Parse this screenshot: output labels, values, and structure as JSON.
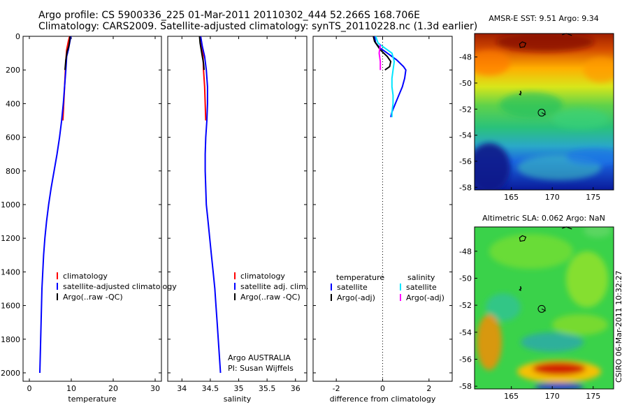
{
  "header": {
    "line1": "Argo profile: CS 5900336_225 01-Mar-2011 20110302_444 52.266S 168.706E",
    "line2": "Climatology: CARS2009. Satellite-adjusted climatology: synTS_20110228.nc (1.3d earlier)"
  },
  "footer_stamp": "CSIRO 06-Mar-2011 10:32:27",
  "credit": {
    "line1": "Argo AUSTRALIA",
    "line2": "PI: Susan Wijffels"
  },
  "colors": {
    "climatology": "#ff0000",
    "satellite": "#0000ff",
    "argo": "#000000",
    "salinity_satellite": "#00e5ff",
    "salinity_argo": "#ff00ff"
  },
  "chart_data": [
    {
      "id": "temperature",
      "type": "line",
      "xlabel": "temperature",
      "ylabel": "",
      "xlim": [
        -1.5,
        31.5
      ],
      "ylim": [
        2050,
        0
      ],
      "xticks": [
        0,
        10,
        20,
        30
      ],
      "xtick_labels": [
        "0",
        "10",
        "20",
        "30"
      ],
      "yticks": [
        0,
        200,
        400,
        600,
        800,
        1000,
        1200,
        1400,
        1600,
        1800,
        2000
      ],
      "ytick_labels": [
        "0",
        "200",
        "400",
        "600",
        "800",
        "1000",
        "1200",
        "1400",
        "1600",
        "1800",
        "2000"
      ],
      "legend": [
        "climatology",
        "satellite-adjusted climatology",
        "Argo(..raw -QC)"
      ],
      "legend_position": "lower-right",
      "series": [
        {
          "name": "climatology",
          "color": "#ff0000",
          "points": [
            [
              9.6,
              0
            ],
            [
              9.3,
              30
            ],
            [
              8.9,
              80
            ],
            [
              8.7,
              150
            ],
            [
              8.5,
              250
            ],
            [
              8.3,
              350
            ],
            [
              8.1,
              450
            ],
            [
              8.0,
              500
            ]
          ]
        },
        {
          "name": "satellite-adjusted climatology",
          "color": "#0000ff",
          "points": [
            [
              9.9,
              0
            ],
            [
              9.6,
              40
            ],
            [
              9.3,
              80
            ],
            [
              8.9,
              120
            ],
            [
              8.7,
              200
            ],
            [
              8.4,
              300
            ],
            [
              8.1,
              400
            ],
            [
              7.7,
              500
            ],
            [
              7.2,
              600
            ],
            [
              6.6,
              700
            ],
            [
              5.9,
              800
            ],
            [
              5.2,
              900
            ],
            [
              4.6,
              1000
            ],
            [
              4.1,
              1100
            ],
            [
              3.7,
              1200
            ],
            [
              3.4,
              1300
            ],
            [
              3.2,
              1400
            ],
            [
              3.0,
              1500
            ],
            [
              2.9,
              1600
            ],
            [
              2.8,
              1700
            ],
            [
              2.7,
              1800
            ],
            [
              2.6,
              1900
            ],
            [
              2.5,
              2000
            ]
          ]
        },
        {
          "name": "Argo(..raw -QC)",
          "color": "#000000",
          "points": [
            [
              9.7,
              0
            ],
            [
              9.6,
              30
            ],
            [
              9.4,
              60
            ],
            [
              9.0,
              90
            ],
            [
              8.7,
              140
            ],
            [
              8.5,
              200
            ]
          ]
        }
      ]
    },
    {
      "id": "salinity",
      "type": "line",
      "xlabel": "salinity",
      "ylabel": "",
      "xlim": [
        33.75,
        36.2
      ],
      "ylim": [
        2050,
        0
      ],
      "xticks": [
        34,
        34.5,
        35,
        35.5,
        36
      ],
      "xtick_labels": [
        "34",
        "34.5",
        "35",
        "35.5",
        "36"
      ],
      "legend": [
        "climatology",
        "satellite adj. clim.",
        "Argo(..raw -QC)"
      ],
      "legend_position": "lower-right",
      "series": [
        {
          "name": "climatology",
          "color": "#ff0000",
          "points": [
            [
              34.33,
              0
            ],
            [
              34.35,
              50
            ],
            [
              34.37,
              100
            ],
            [
              34.38,
              200
            ],
            [
              34.4,
              300
            ],
            [
              34.41,
              400
            ],
            [
              34.42,
              500
            ]
          ]
        },
        {
          "name": "satellite adj. clim.",
          "color": "#0000ff",
          "points": [
            [
              34.33,
              0
            ],
            [
              34.36,
              60
            ],
            [
              34.4,
              120
            ],
            [
              34.43,
              200
            ],
            [
              34.45,
              300
            ],
            [
              34.45,
              400
            ],
            [
              34.44,
              500
            ],
            [
              34.42,
              600
            ],
            [
              34.41,
              700
            ],
            [
              34.41,
              800
            ],
            [
              34.42,
              900
            ],
            [
              34.43,
              1000
            ],
            [
              34.46,
              1100
            ],
            [
              34.49,
              1200
            ],
            [
              34.52,
              1300
            ],
            [
              34.55,
              1400
            ],
            [
              34.58,
              1500
            ],
            [
              34.6,
              1600
            ],
            [
              34.62,
              1700
            ],
            [
              34.64,
              1800
            ],
            [
              34.66,
              1900
            ],
            [
              34.68,
              2000
            ]
          ]
        },
        {
          "name": "Argo(..raw -QC)",
          "color": "#000000",
          "points": [
            [
              34.31,
              0
            ],
            [
              34.32,
              40
            ],
            [
              34.34,
              80
            ],
            [
              34.36,
              120
            ],
            [
              34.38,
              160
            ],
            [
              34.39,
              200
            ]
          ]
        }
      ]
    },
    {
      "id": "difference",
      "type": "line",
      "xlabel": "difference from climatology",
      "ylabel": "",
      "xlim": [
        -3,
        3
      ],
      "ylim": [
        2050,
        0
      ],
      "xticks": [
        -2,
        0,
        2
      ],
      "xtick_labels": [
        "-2",
        "0",
        "2"
      ],
      "zero_line": true,
      "legend_headers": [
        "temperature",
        "salinity"
      ],
      "legend": [
        "satellite",
        "Argo(-adj)",
        "satellite",
        "Argo(-adj)"
      ],
      "legend_position": "lower-center",
      "series": [
        {
          "name": "temperature satellite",
          "color": "#0000ff",
          "points": [
            [
              -0.35,
              0
            ],
            [
              -0.3,
              40
            ],
            [
              -0.1,
              70
            ],
            [
              0.2,
              100
            ],
            [
              0.6,
              140
            ],
            [
              0.9,
              180
            ],
            [
              1.0,
              200
            ],
            [
              0.95,
              250
            ],
            [
              0.85,
              300
            ],
            [
              0.7,
              350
            ],
            [
              0.55,
              400
            ],
            [
              0.4,
              450
            ],
            [
              0.35,
              480
            ]
          ]
        },
        {
          "name": "temperature Argo(-adj)",
          "color": "#000000",
          "points": [
            [
              -0.4,
              0
            ],
            [
              -0.35,
              30
            ],
            [
              -0.2,
              60
            ],
            [
              -0.1,
              80
            ],
            [
              0.2,
              120
            ],
            [
              0.35,
              150
            ],
            [
              0.3,
              180
            ],
            [
              0.1,
              200
            ]
          ]
        },
        {
          "name": "salinity satellite",
          "color": "#00e5ff",
          "points": [
            [
              -0.3,
              0
            ],
            [
              -0.2,
              40
            ],
            [
              0.1,
              70
            ],
            [
              0.4,
              100
            ],
            [
              0.5,
              150
            ],
            [
              0.45,
              200
            ],
            [
              0.4,
              250
            ],
            [
              0.4,
              300
            ],
            [
              0.45,
              350
            ],
            [
              0.45,
              400
            ],
            [
              0.4,
              450
            ],
            [
              0.4,
              480
            ]
          ]
        },
        {
          "name": "salinity Argo(-adj)",
          "color": "#ff00ff",
          "points": [
            [
              -0.1,
              50
            ],
            [
              -0.15,
              100
            ],
            [
              -0.1,
              150
            ],
            [
              -0.1,
              200
            ]
          ]
        }
      ]
    },
    {
      "id": "sst_map",
      "type": "heatmap",
      "title": "AMSR-E SST: 9.51 Argo: 9.34",
      "xlim": [
        160.5,
        177.5
      ],
      "ylim": [
        -58.2,
        -46.2
      ],
      "xticks": [
        165,
        170,
        175
      ],
      "xtick_labels": [
        "165",
        "170",
        "175"
      ],
      "yticks": [
        -48,
        -50,
        -52,
        -54,
        -56,
        -58
      ],
      "ytick_labels": [
        "-48",
        "-50",
        "-52",
        "-54",
        "-56",
        "-58"
      ],
      "colormap": "jet",
      "marker": {
        "lon": 168.7,
        "lat": -52.27
      }
    },
    {
      "id": "sla_map",
      "type": "heatmap",
      "title": "Altimetric SLA: 0.062 Argo: NaN",
      "xlim": [
        160.5,
        177.5
      ],
      "ylim": [
        -58.2,
        -46.2
      ],
      "xticks": [
        165,
        170,
        175
      ],
      "xtick_labels": [
        "165",
        "170",
        "175"
      ],
      "yticks": [
        -48,
        -50,
        -52,
        -54,
        -56,
        -58
      ],
      "ytick_labels": [
        "-48",
        "-50",
        "-52",
        "-54",
        "-56",
        "-58"
      ],
      "colormap": "jet",
      "marker": {
        "lon": 168.7,
        "lat": -52.27
      }
    }
  ]
}
